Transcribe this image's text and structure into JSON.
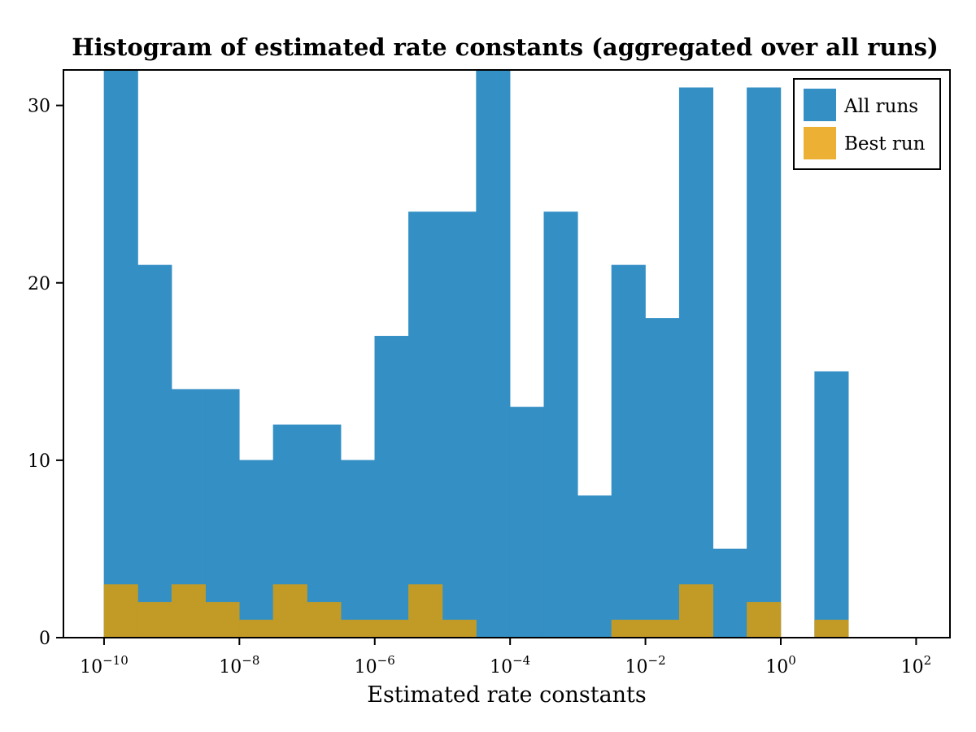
{
  "chart_data": {
    "type": "bar",
    "title": "Histogram of estimated rate constants (aggregated over all runs)",
    "xlabel": "Estimated rate constants",
    "ylabel": "",
    "x_scale": "log10",
    "xlim": [
      -10.6,
      102.5
    ],
    "ylim": [
      0,
      32
    ],
    "bin_edges_log10": [
      -10,
      -9.5,
      -9,
      -8.5,
      -8,
      -7.5,
      -7,
      -6.5,
      -6,
      -5.5,
      -5,
      -4.5,
      -4,
      -3.5,
      -3,
      -2.5,
      -2,
      -1.5,
      -1,
      -0.5,
      0,
      0.5,
      1
    ],
    "x_ticks": [
      {
        "base": "10",
        "exp": "−10",
        "log10": -10
      },
      {
        "base": "10",
        "exp": "−8",
        "log10": -8
      },
      {
        "base": "10",
        "exp": "−6",
        "log10": -6
      },
      {
        "base": "10",
        "exp": "−4",
        "log10": -4
      },
      {
        "base": "10",
        "exp": "−2",
        "log10": -2
      },
      {
        "base": "10",
        "exp": "0",
        "log10": 0
      },
      {
        "base": "10",
        "exp": "2",
        "log10": 2
      }
    ],
    "y_ticks": [
      "0",
      "10",
      "20",
      "30"
    ],
    "series": [
      {
        "name": "All runs",
        "color": "#348fc4",
        "values": [
          32,
          21,
          14,
          14,
          10,
          12,
          12,
          10,
          17,
          24,
          24,
          32,
          13,
          24,
          8,
          21,
          18,
          31,
          5,
          31,
          0,
          15
        ]
      },
      {
        "name": "Best run",
        "color": "#c29b27",
        "legend_color": "#ebb034",
        "values": [
          3,
          2,
          3,
          2,
          1,
          3,
          2,
          1,
          1,
          3,
          1,
          0,
          0,
          0,
          0,
          1,
          1,
          3,
          0,
          2,
          0,
          1
        ]
      }
    ],
    "grid": false,
    "legend": "top-right"
  }
}
